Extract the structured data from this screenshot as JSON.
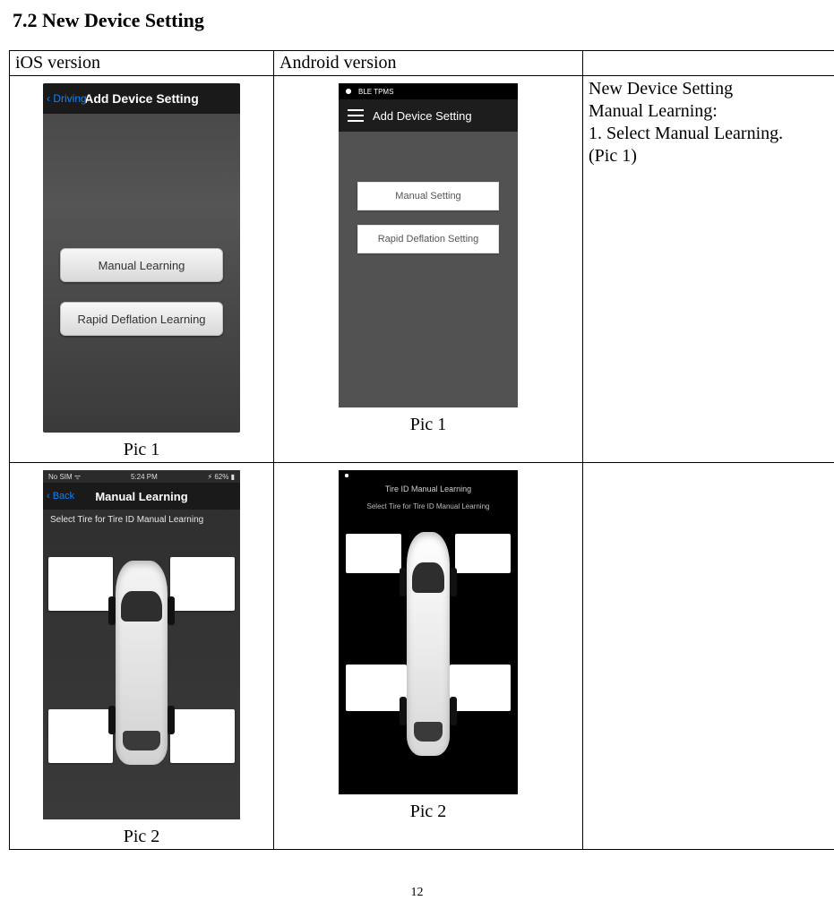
{
  "section_title": "7.2 New Device Setting",
  "headers": {
    "ios": "iOS version",
    "android": "Android version"
  },
  "captions": {
    "pic1": "Pic 1",
    "pic2": "Pic 2"
  },
  "ios_add": {
    "back": "‹ Driving",
    "title": "Add Device Setting",
    "btn_manual": "Manual Learning",
    "btn_rapid": "Rapid Deflation Learning"
  },
  "and_add": {
    "status_label": "BLE TPMS",
    "title": "Add  Device Setting",
    "btn_manual": "Manual Setting",
    "btn_rapid": "Rapid Deflation Setting"
  },
  "ios_learn": {
    "status_left": "No SIM ᯤ",
    "status_mid": "5:24 PM",
    "status_right": "⚡︎ 62% ▮",
    "back": "‹ Back",
    "title": "Manual Learning",
    "msg": "Select Tire for Tire ID Manual Learning"
  },
  "and_learn": {
    "crumb": "Tire ID Manual Learning",
    "msg": "Select Tire for Tire ID Manual Learning"
  },
  "instructions": {
    "line1": "New Device Setting",
    "line2": "Manual Learning:",
    "line3": "1. Select Manual Learning.",
    "line4": "(Pic 1)"
  },
  "page_number": "12"
}
